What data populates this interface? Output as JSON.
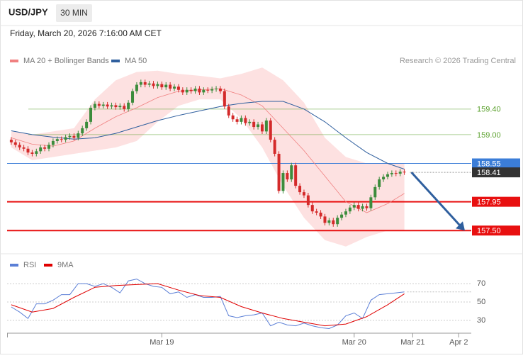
{
  "header": {
    "symbol": "USD/JPY",
    "interval": "30 MIN",
    "datetime": "Friday, March 20, 2026 7:16:00 AM CET"
  },
  "chart_data": [
    {
      "type": "candlestick",
      "credit": "Research © 2026 Trading Central",
      "xlim": [
        -1,
        110
      ],
      "ylim": [
        157.17,
        160.44
      ],
      "up_color": "#3c8c3c",
      "down_color": "#d42a2a",
      "x": [
        0,
        1,
        2,
        3,
        4,
        5,
        6,
        7,
        8,
        9,
        10,
        11,
        12,
        13,
        14,
        15,
        16,
        17,
        18,
        19,
        20,
        21,
        22,
        23,
        24,
        25,
        26,
        27,
        28,
        29,
        30,
        31,
        32,
        33,
        34,
        35,
        36,
        37,
        38,
        39,
        40,
        41,
        42,
        43,
        44,
        45,
        46,
        47,
        48,
        49,
        50,
        51,
        52,
        53,
        54,
        55,
        56,
        57,
        58,
        59,
        60,
        61,
        62,
        63,
        64,
        65,
        66,
        67,
        68,
        69,
        70,
        71,
        72,
        73,
        74,
        75,
        76,
        77,
        78,
        79,
        80,
        81,
        82,
        83,
        84,
        85,
        86,
        87,
        88,
        89,
        90,
        91,
        92,
        93,
        94
      ],
      "open": [
        158.92,
        158.88,
        158.84,
        158.8,
        158.78,
        158.72,
        158.7,
        158.74,
        158.8,
        158.78,
        158.84,
        158.9,
        158.93,
        158.92,
        158.96,
        158.98,
        158.95,
        159.02,
        159.1,
        159.2,
        159.42,
        159.48,
        159.45,
        159.47,
        159.44,
        159.46,
        159.43,
        159.45,
        159.4,
        159.5,
        159.68,
        159.78,
        159.82,
        159.78,
        159.8,
        159.76,
        159.79,
        159.74,
        159.78,
        159.72,
        159.75,
        159.7,
        159.66,
        159.7,
        159.68,
        159.72,
        159.66,
        159.7,
        159.69,
        159.71,
        159.72,
        159.68,
        159.44,
        159.3,
        159.24,
        159.2,
        159.26,
        159.18,
        159.2,
        159.12,
        159.16,
        159.05,
        159.22,
        158.92,
        158.7,
        158.12,
        158.4,
        158.3,
        158.52,
        158.2,
        158.1,
        158.05,
        157.9,
        157.8,
        157.78,
        157.72,
        157.62,
        157.66,
        157.6,
        157.7,
        157.75,
        157.8,
        157.86,
        157.9,
        157.84,
        157.88,
        157.85,
        158.02,
        158.18,
        158.3,
        158.34,
        158.38,
        158.4,
        158.39,
        158.42
      ],
      "high": [
        158.96,
        158.92,
        158.88,
        158.84,
        158.82,
        158.76,
        158.78,
        158.84,
        158.84,
        158.88,
        158.94,
        158.97,
        158.97,
        159.0,
        159.02,
        159.02,
        159.06,
        159.14,
        159.24,
        159.46,
        159.52,
        159.52,
        159.51,
        159.51,
        159.5,
        159.5,
        159.49,
        159.49,
        159.54,
        159.72,
        159.82,
        159.86,
        159.86,
        159.84,
        159.84,
        159.83,
        159.83,
        159.82,
        159.82,
        159.79,
        159.79,
        159.74,
        159.74,
        159.74,
        159.76,
        159.76,
        159.74,
        159.74,
        159.75,
        159.76,
        159.76,
        159.72,
        159.48,
        159.34,
        159.28,
        159.3,
        159.3,
        159.24,
        159.24,
        159.2,
        159.2,
        159.26,
        159.26,
        158.96,
        158.74,
        158.44,
        158.44,
        158.56,
        158.56,
        158.24,
        158.14,
        158.09,
        157.94,
        157.84,
        157.82,
        157.76,
        157.7,
        157.7,
        157.74,
        157.79,
        157.84,
        157.9,
        157.94,
        157.94,
        157.92,
        157.92,
        158.06,
        158.22,
        158.34,
        158.38,
        158.42,
        158.44,
        158.44,
        158.46,
        158.46
      ],
      "low": [
        158.84,
        158.8,
        158.76,
        158.74,
        158.68,
        158.66,
        158.66,
        158.7,
        158.74,
        158.74,
        158.8,
        158.86,
        158.88,
        158.88,
        158.92,
        158.91,
        158.91,
        158.98,
        159.06,
        159.16,
        159.38,
        159.41,
        159.41,
        159.4,
        159.4,
        159.39,
        159.39,
        159.36,
        159.36,
        159.46,
        159.64,
        159.74,
        159.74,
        159.74,
        159.72,
        159.72,
        159.7,
        159.7,
        159.68,
        159.68,
        159.66,
        159.62,
        159.62,
        159.64,
        159.64,
        159.62,
        159.62,
        159.65,
        159.65,
        159.67,
        159.64,
        159.4,
        159.26,
        159.2,
        159.16,
        159.16,
        159.14,
        159.14,
        159.08,
        159.08,
        159.01,
        159.01,
        158.88,
        158.66,
        158.08,
        158.08,
        158.26,
        158.26,
        158.16,
        158.06,
        158.01,
        157.86,
        157.76,
        157.74,
        157.68,
        157.58,
        157.58,
        157.56,
        157.56,
        157.66,
        157.71,
        157.76,
        157.82,
        157.8,
        157.8,
        157.81,
        157.81,
        157.98,
        158.14,
        158.26,
        158.3,
        158.34,
        158.35,
        158.35,
        158.37
      ],
      "close": [
        158.88,
        158.84,
        158.8,
        158.78,
        158.72,
        158.7,
        158.74,
        158.8,
        158.78,
        158.84,
        158.9,
        158.93,
        158.92,
        158.96,
        158.98,
        158.95,
        159.02,
        159.1,
        159.2,
        159.42,
        159.48,
        159.45,
        159.47,
        159.44,
        159.46,
        159.43,
        159.45,
        159.4,
        159.5,
        159.68,
        159.78,
        159.82,
        159.78,
        159.8,
        159.76,
        159.79,
        159.74,
        159.78,
        159.72,
        159.75,
        159.7,
        159.66,
        159.7,
        159.68,
        159.72,
        159.66,
        159.7,
        159.69,
        159.71,
        159.72,
        159.68,
        159.44,
        159.3,
        159.24,
        159.2,
        159.26,
        159.18,
        159.2,
        159.12,
        159.16,
        159.05,
        159.22,
        158.92,
        158.7,
        158.12,
        158.4,
        158.3,
        158.52,
        158.2,
        158.1,
        158.05,
        157.9,
        157.8,
        157.78,
        157.72,
        157.62,
        157.66,
        157.6,
        157.7,
        157.75,
        157.8,
        157.86,
        157.9,
        157.84,
        157.88,
        157.85,
        158.02,
        158.18,
        158.3,
        158.34,
        158.38,
        158.4,
        158.39,
        158.42,
        158.41
      ],
      "series": [
        {
          "name": "MA 20 + Bollinger Bands",
          "color": "#f08080",
          "band_color": "#fde1e1",
          "x": [
            0,
            5,
            10,
            15,
            20,
            25,
            30,
            35,
            40,
            45,
            50,
            55,
            60,
            65,
            70,
            75,
            80,
            85,
            90,
            94
          ],
          "values": [
            158.95,
            158.85,
            158.82,
            158.9,
            159.1,
            159.28,
            159.42,
            159.58,
            159.68,
            159.7,
            159.72,
            159.62,
            159.45,
            159.1,
            158.75,
            158.35,
            157.95,
            157.78,
            157.92,
            158.08
          ],
          "upper": [
            159.05,
            159.0,
            159.05,
            159.1,
            159.55,
            159.85,
            159.98,
            160.0,
            159.95,
            159.92,
            159.88,
            159.95,
            160.05,
            159.85,
            159.5,
            158.95,
            158.65,
            158.55,
            158.55,
            158.55
          ],
          "lower": [
            158.8,
            158.6,
            158.65,
            158.7,
            158.75,
            158.8,
            158.9,
            159.2,
            159.45,
            159.55,
            159.55,
            159.25,
            158.8,
            158.2,
            157.7,
            157.35,
            157.25,
            157.4,
            157.5,
            157.5
          ]
        },
        {
          "name": "MA 50",
          "color": "#2f5f9e",
          "x": [
            0,
            5,
            10,
            15,
            20,
            25,
            30,
            35,
            40,
            45,
            50,
            55,
            60,
            65,
            70,
            75,
            80,
            85,
            90,
            94
          ],
          "values": [
            159.06,
            159.0,
            158.96,
            158.93,
            158.95,
            159.02,
            159.12,
            159.22,
            159.3,
            159.37,
            159.44,
            159.49,
            159.52,
            159.52,
            159.4,
            159.2,
            158.95,
            158.72,
            158.55,
            158.46
          ]
        }
      ],
      "levels": [
        {
          "value": 159.4,
          "label": "159.40",
          "color": "#5aa02c",
          "kind": "text"
        },
        {
          "value": 159.0,
          "label": "159.00",
          "color": "#5aa02c",
          "kind": "text"
        },
        {
          "value": 158.55,
          "label": "158.55",
          "color": "#3b7dd8",
          "kind": "box"
        },
        {
          "value": 157.95,
          "label": "157.95",
          "color": "#e81010",
          "kind": "box"
        },
        {
          "value": 157.5,
          "label": "157.50",
          "color": "#e81010",
          "kind": "box"
        },
        {
          "value": 158.41,
          "label": "158.41",
          "color": "#333333",
          "kind": "current"
        }
      ]
    },
    {
      "type": "line",
      "xlim": [
        -1,
        110
      ],
      "ylim": [
        16,
        101
      ],
      "yticks": [
        30,
        50,
        70
      ],
      "xticks": [
        {
          "value": 36,
          "label": "Mar 19"
        },
        {
          "value": 82,
          "label": "Mar 20"
        },
        {
          "value": 96,
          "label": "Mar 21"
        },
        {
          "value": 107,
          "label": "Apr 2"
        }
      ],
      "series": [
        {
          "name": "RSI",
          "color": "#5b7fd6",
          "x": [
            0,
            2,
            4,
            6,
            8,
            10,
            12,
            14,
            16,
            18,
            20,
            22,
            24,
            26,
            28,
            30,
            32,
            34,
            36,
            38,
            40,
            42,
            44,
            46,
            48,
            50,
            52,
            54,
            56,
            58,
            60,
            62,
            64,
            66,
            68,
            70,
            72,
            74,
            76,
            78,
            80,
            82,
            84,
            86,
            88,
            90,
            92,
            94
          ],
          "values": [
            44.6,
            39,
            32,
            48,
            48,
            52,
            58,
            58,
            70,
            70,
            67,
            70,
            66,
            60,
            73,
            75,
            70,
            67,
            66,
            59,
            61,
            55,
            58,
            55,
            55,
            56,
            35,
            33,
            35,
            36,
            38,
            24,
            28,
            25,
            24,
            27,
            24,
            22,
            21,
            25,
            35,
            38,
            32,
            52,
            58,
            59,
            60,
            61
          ]
        },
        {
          "name": "9MA",
          "color": "#e00000",
          "x": [
            0,
            5,
            10,
            15,
            20,
            25,
            30,
            35,
            40,
            45,
            50,
            55,
            60,
            65,
            70,
            75,
            80,
            85,
            90,
            94
          ],
          "values": [
            47,
            39,
            43,
            55,
            66,
            68,
            69,
            70,
            63,
            57,
            55,
            45,
            38,
            32,
            28,
            24,
            26,
            34,
            47,
            59
          ]
        }
      ]
    }
  ]
}
